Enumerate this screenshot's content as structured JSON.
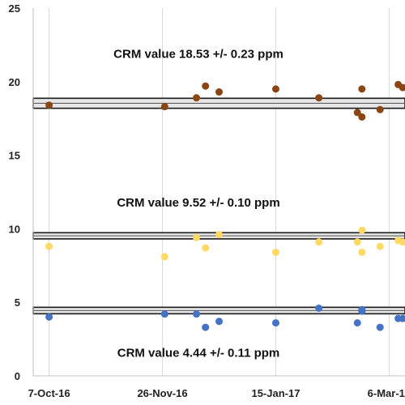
{
  "chart_data": {
    "type": "scatter",
    "title": "",
    "xlabel": "",
    "ylabel": "",
    "x_tick_labels": [
      "7-Oct-16",
      "26-Nov-16",
      "15-Jan-17",
      "6-Mar-17"
    ],
    "x_ticks": [
      "2016-10-07",
      "2016-11-26",
      "2017-01-15",
      "2017-03-06"
    ],
    "xlim": [
      "2016-09-30",
      "2017-03-13"
    ],
    "ylim": [
      0,
      25
    ],
    "y_ticks": [
      0,
      5,
      10,
      15,
      20,
      25
    ],
    "grid": "vertical",
    "legend": "none",
    "series": [
      {
        "color": "#8B4513",
        "points": [
          {
            "x": "2016-10-07",
            "y": 18.4
          },
          {
            "x": "2016-11-27",
            "y": 18.3
          },
          {
            "x": "2016-12-11",
            "y": 18.9
          },
          {
            "x": "2016-12-15",
            "y": 19.7
          },
          {
            "x": "2016-12-21",
            "y": 19.3
          },
          {
            "x": "2017-01-15",
            "y": 19.5
          },
          {
            "x": "2017-02-03",
            "y": 18.9
          },
          {
            "x": "2017-02-20",
            "y": 17.9
          },
          {
            "x": "2017-02-22",
            "y": 17.6
          },
          {
            "x": "2017-02-22",
            "y": 19.5
          },
          {
            "x": "2017-03-02",
            "y": 18.1
          },
          {
            "x": "2017-03-10",
            "y": 19.8
          },
          {
            "x": "2017-03-12",
            "y": 19.6
          }
        ]
      },
      {
        "color": "#FFD966",
        "points": [
          {
            "x": "2016-10-07",
            "y": 8.8
          },
          {
            "x": "2016-11-27",
            "y": 8.1
          },
          {
            "x": "2016-12-11",
            "y": 9.4
          },
          {
            "x": "2016-12-15",
            "y": 8.7
          },
          {
            "x": "2016-12-21",
            "y": 9.6
          },
          {
            "x": "2017-01-15",
            "y": 8.4
          },
          {
            "x": "2017-02-03",
            "y": 9.1
          },
          {
            "x": "2017-02-20",
            "y": 9.1
          },
          {
            "x": "2017-02-22",
            "y": 8.4
          },
          {
            "x": "2017-02-22",
            "y": 9.9
          },
          {
            "x": "2017-03-02",
            "y": 8.8
          },
          {
            "x": "2017-03-10",
            "y": 9.2
          },
          {
            "x": "2017-03-12",
            "y": 9.1
          }
        ]
      },
      {
        "color": "#4472C4",
        "points": [
          {
            "x": "2016-10-07",
            "y": 4.0
          },
          {
            "x": "2016-11-27",
            "y": 4.2
          },
          {
            "x": "2016-12-11",
            "y": 4.2
          },
          {
            "x": "2016-12-15",
            "y": 3.3
          },
          {
            "x": "2016-12-21",
            "y": 3.7
          },
          {
            "x": "2017-01-15",
            "y": 3.6
          },
          {
            "x": "2017-02-03",
            "y": 4.6
          },
          {
            "x": "2017-02-20",
            "y": 3.6
          },
          {
            "x": "2017-02-22",
            "y": 4.4
          },
          {
            "x": "2017-02-22",
            "y": 4.5
          },
          {
            "x": "2017-03-02",
            "y": 3.3
          },
          {
            "x": "2017-03-10",
            "y": 3.9
          },
          {
            "x": "2017-03-12",
            "y": 3.9
          }
        ]
      }
    ],
    "reference_lines": [
      {
        "y": 18.53,
        "half_width": 0.23,
        "label": "CRM value 18.53 +/- 0.23 ppm",
        "label_y": 21.6
      },
      {
        "y": 9.52,
        "half_width": 0.1,
        "label": "CRM value 9.52 +/- 0.10 ppm",
        "label_y": 11.5
      },
      {
        "y": 4.44,
        "half_width": 0.11,
        "label": "CRM value 4.44 +/- 0.11 ppm",
        "label_y": 1.3
      }
    ]
  }
}
